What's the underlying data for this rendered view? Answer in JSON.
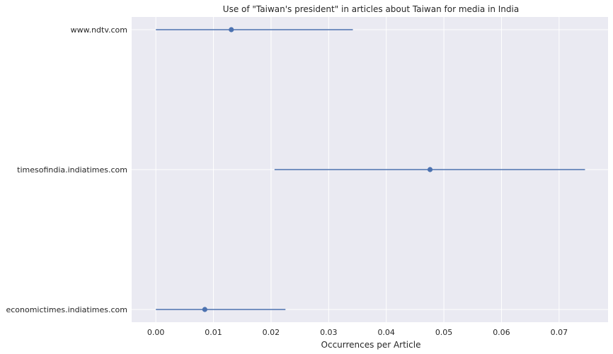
{
  "chart_data": {
    "type": "scatter",
    "title": "Use of \"Taiwan's president\" in articles about Taiwan for media in India",
    "xlabel": "Occurrences per Article",
    "ylabel": "",
    "xlim": [
      -0.0042,
      0.0785
    ],
    "x_ticks": [
      "0.00",
      "0.01",
      "0.02",
      "0.03",
      "0.04",
      "0.05",
      "0.06",
      "0.07"
    ],
    "x_tick_values": [
      0.0,
      0.01,
      0.02,
      0.03,
      0.04,
      0.05,
      0.06,
      0.07
    ],
    "categories": [
      "www.ndtv.com",
      "timesofindia.indiatimes.com",
      "economictimes.indiatimes.com"
    ],
    "values": [
      0.0131,
      0.0476,
      0.0085
    ],
    "ci_low": [
      0.0,
      0.0206,
      0.0
    ],
    "ci_high": [
      0.0342,
      0.0745,
      0.0225
    ],
    "grid": true,
    "legend": "none",
    "colors": {
      "series": "#4c72b0",
      "background": "#eaeaf2",
      "grid": "#ffffff"
    }
  }
}
